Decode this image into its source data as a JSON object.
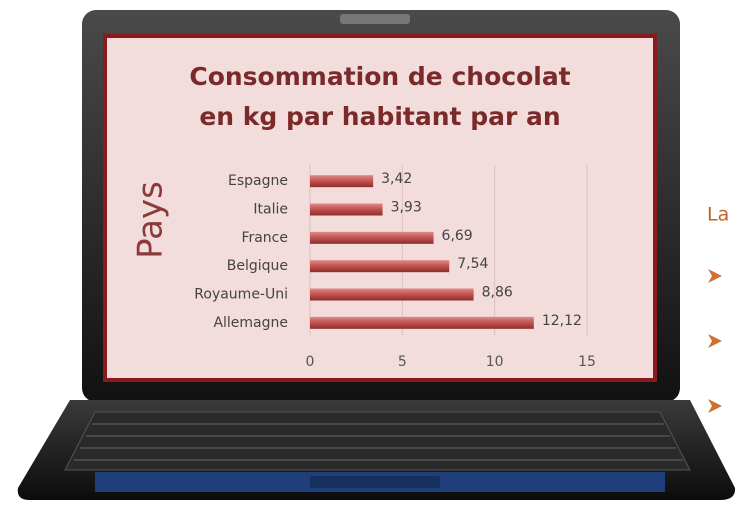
{
  "chart_data": {
    "type": "bar",
    "orientation": "horizontal",
    "title": [
      "Consommation de chocolat",
      "en kg par habitant par an"
    ],
    "y_label": "Pays",
    "categories": [
      "Espagne",
      "Italie",
      "France",
      "Belgique",
      "Royaume-Uni",
      "Allemagne"
    ],
    "values": [
      3.42,
      3.93,
      6.69,
      7.54,
      8.86,
      12.12
    ],
    "value_labels": [
      "3,42",
      "3,93",
      "6,69",
      "7,54",
      "8,86",
      "12,12"
    ],
    "color": "#c0504d",
    "xlim": [
      0,
      15
    ],
    "xticks": [
      0,
      5,
      10,
      15
    ],
    "grid": true,
    "side_text": "La"
  }
}
